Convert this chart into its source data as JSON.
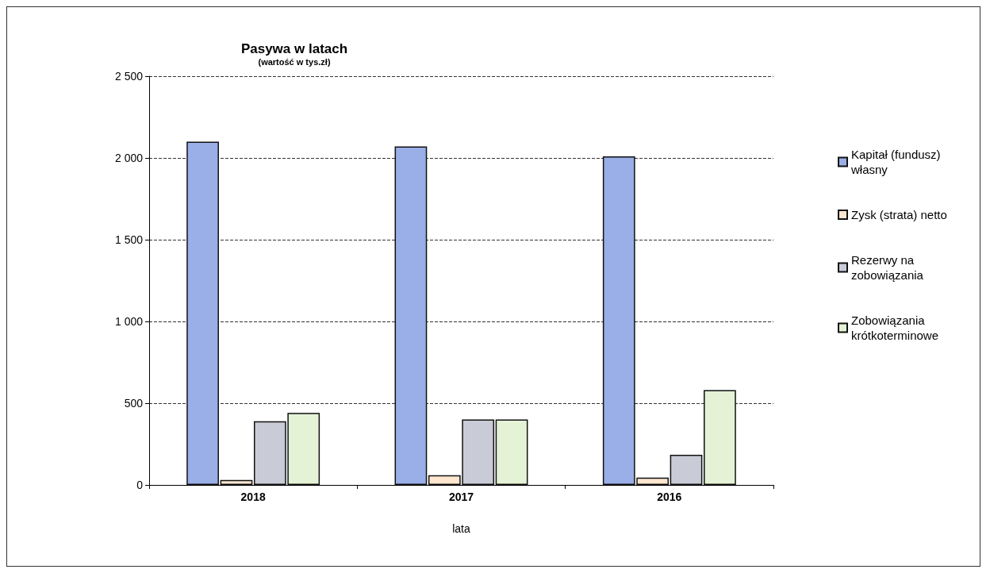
{
  "chart_data": {
    "type": "bar",
    "title": "Pasywa w latach",
    "subtitle": "(wartość w tys.zł)",
    "xlabel": "lata",
    "categories": [
      "2018",
      "2017",
      "2016"
    ],
    "series": [
      {
        "name": "Kapitał (fundusz) własny",
        "color": "#9aaee8",
        "values": [
          2100,
          2070,
          2010
        ]
      },
      {
        "name": "Zysk (strata) netto",
        "color": "#fde6d0",
        "values": [
          30,
          60,
          45
        ]
      },
      {
        "name": "Rezerwy na zobowiązania",
        "color": "#c9ccd6",
        "values": [
          390,
          400,
          185
        ]
      },
      {
        "name": "Zobowiązania krótkoterminowe",
        "color": "#e4f3d6",
        "values": [
          440,
          400,
          580
        ]
      }
    ],
    "ylim": [
      0,
      2500
    ],
    "yticks": [
      0,
      {
        "value": 500,
        "label": "500"
      },
      {
        "value": 1000,
        "label": "1 000"
      },
      {
        "value": 1500,
        "label": "1 500"
      },
      {
        "value": 2000,
        "label": "2 000"
      },
      {
        "value": 2500,
        "label": "2 500"
      }
    ],
    "grid": "y",
    "legend": "right"
  }
}
